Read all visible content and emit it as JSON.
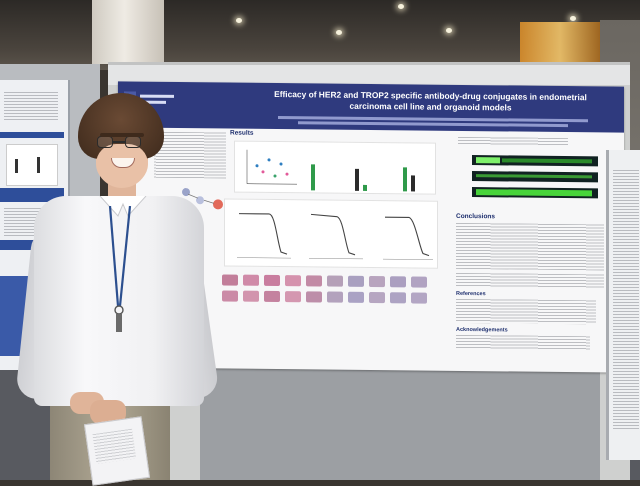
{
  "poster": {
    "title_line1": "Efficacy of HER2 and TROP2 specific antibody-drug conjugates in endometrial",
    "title_line2": "carcinoma cell line and organoid models",
    "section_results": "Results",
    "section_conclusions": "Conclusions",
    "section_references": "References",
    "section_acknowledgements": "Acknowledgements"
  },
  "colors": {
    "header_band": "#2f3a7e",
    "gel_band": "#48d43a",
    "chart_bar_dark": "#2b2b2b",
    "chart_bar_green": "#2f9a4a",
    "organoid_pink": "#c98aa6"
  },
  "scene": {
    "subject": "person in white shirt with lanyard standing beside a research poster",
    "icons": [
      "ceiling-light-icon",
      "lanyard-badge-icon"
    ]
  }
}
